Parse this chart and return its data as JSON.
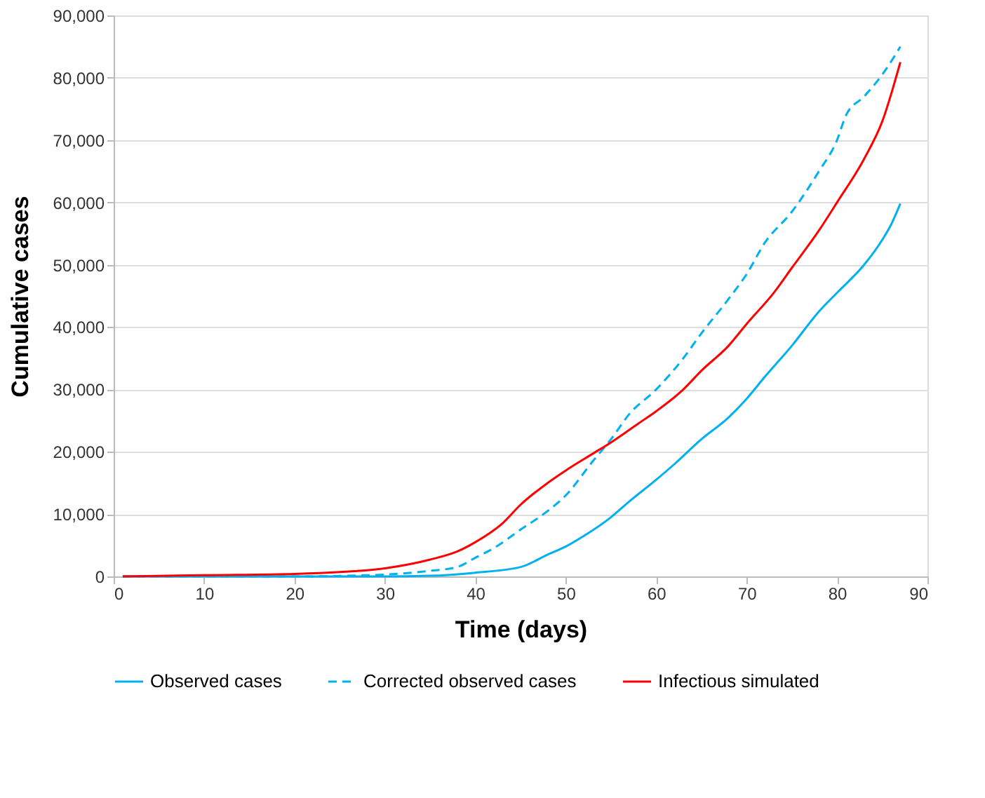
{
  "chart_data": {
    "type": "line",
    "xlabel": "Time (days)",
    "ylabel": "Cumulative cases",
    "xlim": [
      0,
      90
    ],
    "xticks": [
      0,
      10,
      20,
      30,
      40,
      50,
      60,
      70,
      80,
      90
    ],
    "ylim": [
      0,
      90000
    ],
    "yticks": [
      0,
      {
        "value": 10000,
        "label": "10,000"
      },
      {
        "value": 20000,
        "label": "20,000"
      },
      {
        "value": 30000,
        "label": "30,000"
      },
      {
        "value": 40000,
        "label": "40,000"
      },
      {
        "value": 50000,
        "label": "50,000"
      },
      {
        "value": 60000,
        "label": "60,000"
      },
      {
        "value": 70000,
        "label": "70,000"
      },
      {
        "value": 80000,
        "label": "80,000"
      },
      {
        "value": 90000,
        "label": "90,000"
      }
    ],
    "grid": "y",
    "legend": "bottom",
    "series": [
      {
        "name": "Observed cases",
        "color": "#00b0f0",
        "line_style": "solid",
        "x": [
          1,
          10,
          20,
          30,
          35,
          40,
          45,
          48,
          50,
          52,
          55,
          57,
          60,
          62,
          65,
          68,
          70,
          72,
          75,
          78,
          80,
          83,
          85,
          86,
          87
        ],
        "values": [
          0,
          0,
          0,
          0,
          100,
          600,
          1500,
          3500,
          4800,
          6500,
          9500,
          12000,
          15500,
          18000,
          22000,
          25500,
          28500,
          32000,
          37000,
          42500,
          45500,
          50000,
          54000,
          56500,
          59800
        ]
      },
      {
        "name": "Corrected observed cases",
        "color": "#00b0f0",
        "line_style": "dashed",
        "x": [
          1,
          10,
          20,
          30,
          35,
          38,
          40,
          42,
          45,
          48,
          50,
          53,
          55,
          57,
          60,
          63,
          65,
          68,
          70,
          72,
          75,
          78,
          80,
          81,
          83,
          85,
          87
        ],
        "values": [
          0,
          0,
          0,
          300,
          900,
          1500,
          3000,
          4500,
          7500,
          10500,
          13000,
          18500,
          22000,
          26000,
          30000,
          35000,
          39000,
          44500,
          48500,
          53500,
          58500,
          65000,
          70000,
          74000,
          77000,
          80500,
          85000
        ]
      },
      {
        "name": "Infectious simulated",
        "color": "#ff0000",
        "line_style": "solid",
        "x": [
          1,
          10,
          20,
          25,
          30,
          35,
          38,
          40,
          43,
          45,
          48,
          50,
          53,
          55,
          58,
          60,
          63,
          65,
          68,
          70,
          73,
          75,
          78,
          80,
          83,
          85,
          87
        ],
        "values": [
          0,
          200,
          400,
          700,
          1300,
          2700,
          4000,
          5500,
          8500,
          11500,
          15000,
          17000,
          19700,
          21500,
          24500,
          26500,
          30000,
          33000,
          37000,
          40500,
          45500,
          49500,
          55500,
          60000,
          67000,
          73000,
          82500
        ]
      }
    ]
  }
}
